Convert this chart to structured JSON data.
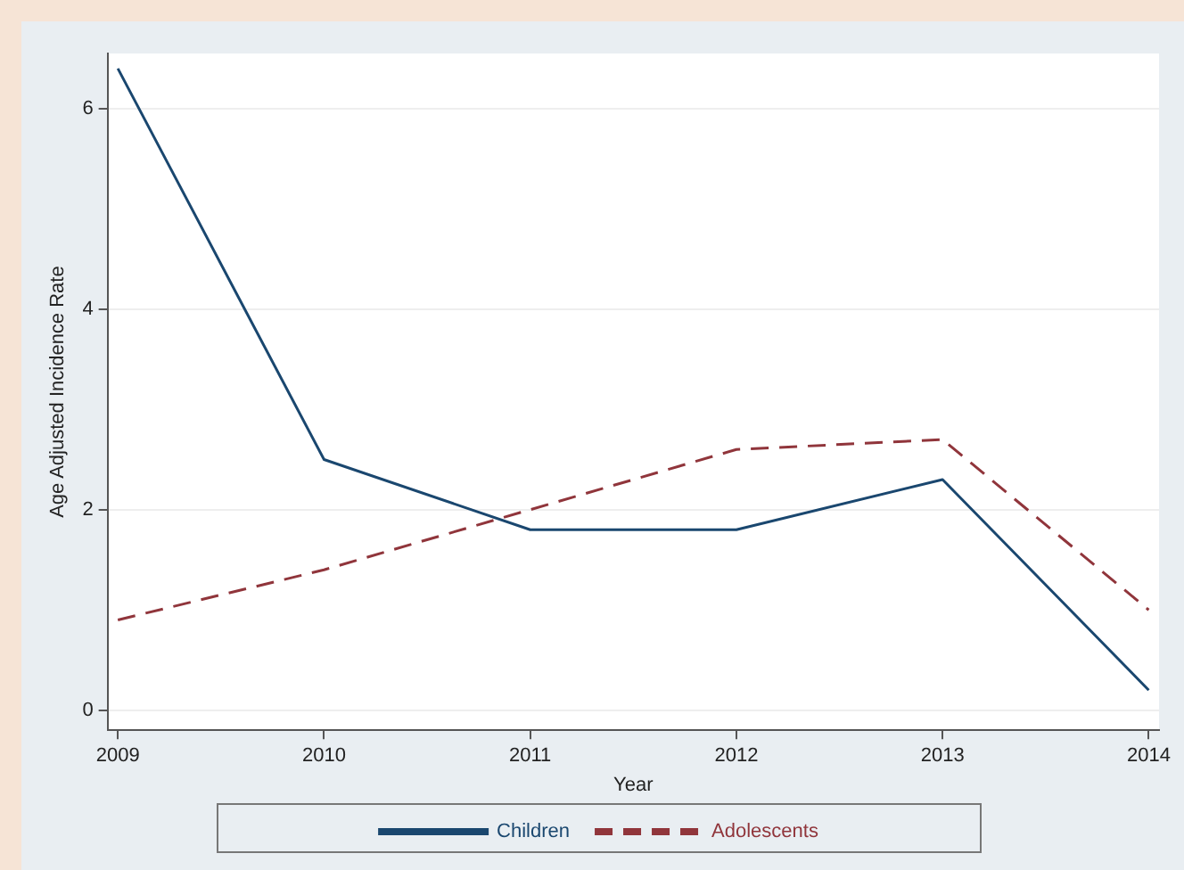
{
  "chart_data": {
    "type": "line",
    "xlabel": "Year",
    "ylabel": "Age Adjusted Incidence Rate",
    "x": [
      2009,
      2010,
      2011,
      2012,
      2013,
      2014
    ],
    "series": [
      {
        "name": "Children",
        "color": "#1a476f",
        "line_style": "solid",
        "values": [
          6.4,
          2.5,
          1.8,
          1.8,
          2.3,
          0.2
        ]
      },
      {
        "name": "Adolescents",
        "color": "#90353b",
        "line_style": "dashed",
        "values": [
          0.9,
          1.4,
          2.0,
          2.6,
          2.7,
          1.0
        ]
      }
    ],
    "xlim": [
      2008.95,
      2014.05
    ],
    "xticks": [
      2009,
      2010,
      2011,
      2012,
      2013,
      2014
    ],
    "ylim": [
      -0.2,
      6.55
    ],
    "yticks": [
      0,
      2,
      4,
      6
    ],
    "grid": "y",
    "legend": "bottom",
    "marker": "none"
  }
}
